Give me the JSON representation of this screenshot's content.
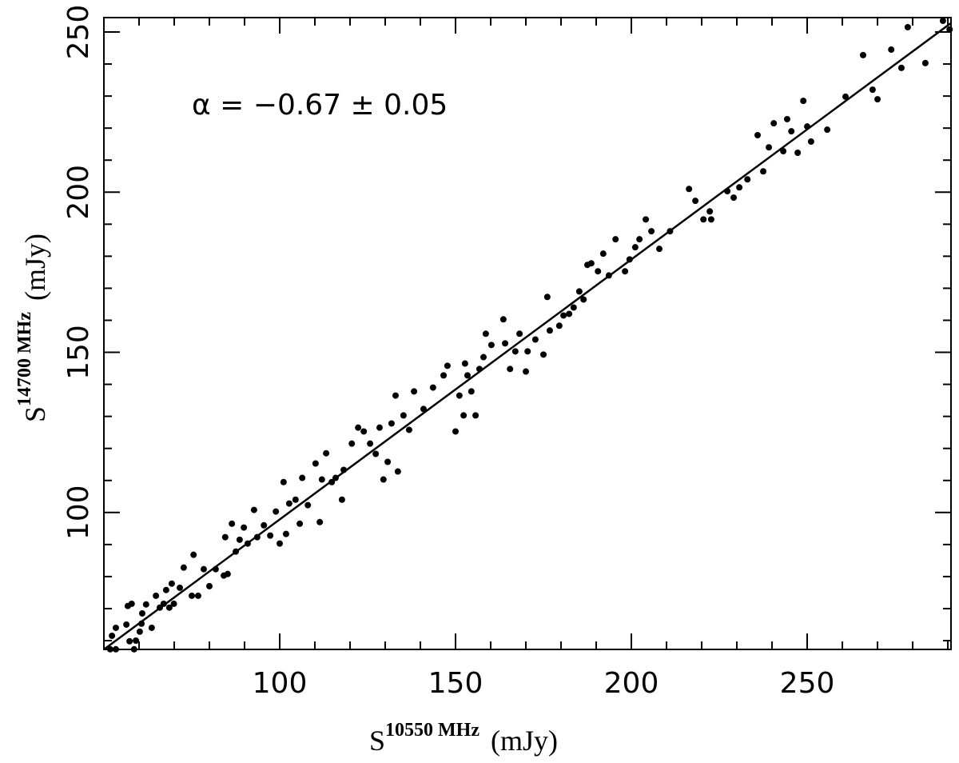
{
  "chart_data": {
    "type": "scatter",
    "annotation": "α = −0.67 ± 0.05",
    "x_label": {
      "base": "S",
      "sup": "10550 MHz",
      "unit": "(mJy)"
    },
    "y_label": {
      "base": "S",
      "sup": "14700 MHz",
      "unit": "(mJy)"
    },
    "xlim": [
      50,
      290.9
    ],
    "ylim": [
      57.25,
      254.5
    ],
    "xticks": [
      100,
      150,
      200,
      250
    ],
    "yticks": [
      100,
      150,
      200,
      250
    ],
    "x_minor_ticks": [
      60,
      70,
      80,
      90,
      110,
      120,
      130,
      140,
      160,
      170,
      180,
      190,
      210,
      220,
      230,
      240,
      260,
      270,
      280,
      290
    ],
    "y_minor_ticks": [
      60,
      70,
      80,
      90,
      110,
      120,
      130,
      140,
      160,
      170,
      180,
      190,
      210,
      220,
      230,
      240
    ],
    "color": "#000000",
    "fit": {
      "x": [
        50,
        290.9
      ],
      "y": [
        57.25,
        252.8
      ]
    },
    "x": [
      51.8,
      53.4,
      52.3,
      53.4,
      56.4,
      56.8,
      57.9,
      57.3,
      58.6,
      59.1,
      60.2,
      60.7,
      60.9,
      62,
      63.6,
      64.8,
      65.9,
      67,
      67.7,
      68.6,
      69.3,
      69.9,
      71.6,
      72.7,
      75,
      75.5,
      76.8,
      78.4,
      80,
      81.8,
      84.1,
      84.5,
      85.2,
      86.4,
      87.5,
      88.6,
      89.8,
      90.9,
      92.7,
      93.6,
      95.5,
      97.3,
      98.9,
      100,
      101.1,
      101.8,
      102.7,
      104.5,
      105.7,
      106.4,
      108,
      110.2,
      111.4,
      112,
      113.2,
      114.8,
      115.9,
      117.7,
      118.2,
      120.5,
      122.3,
      123.9,
      125.7,
      127.3,
      128.4,
      129.5,
      130.7,
      131.8,
      132.95,
      133.6,
      135.2,
      136.8,
      138.2,
      140.9,
      143.6,
      146.6,
      147.7,
      150,
      151.1,
      152.3,
      152.7,
      153.4,
      154.5,
      155.7,
      156.8,
      157.95,
      158.6,
      160.2,
      163.6,
      164.1,
      165.5,
      167,
      168.2,
      170,
      170.5,
      172.7,
      175,
      176.1,
      176.8,
      179.5,
      180.7,
      182.3,
      183.6,
      185.2,
      186.4,
      187.5,
      188.6,
      190.5,
      192,
      193.6,
      195.5,
      198.2,
      199.5,
      201.1,
      202.3,
      204.1,
      205.7,
      207.95,
      211,
      216.4,
      218.2,
      220.5,
      222.3,
      222.7,
      227.3,
      229.1,
      230.7,
      233,
      235.9,
      237.5,
      239.1,
      240.5,
      243.2,
      244.3,
      245.5,
      247.3,
      248.9,
      250,
      251.1,
      255.7,
      260.9,
      265.9,
      268.6,
      270,
      273.9,
      276.8,
      278.6,
      283.6,
      288.6,
      290.5
    ],
    "values": [
      57.3,
      57.3,
      61.5,
      64,
      65,
      70.8,
      71.5,
      59.8,
      57.3,
      60,
      62.8,
      65.3,
      68.5,
      71.3,
      64,
      74,
      70.3,
      71.5,
      75.8,
      70.3,
      77.8,
      71.5,
      76.5,
      82.8,
      74,
      86.8,
      74,
      82.3,
      77,
      82.3,
      80.3,
      92.3,
      80.8,
      96.5,
      87.8,
      91.5,
      95.3,
      90.3,
      100.8,
      92.3,
      96,
      92.8,
      100.3,
      90.3,
      109.5,
      93.3,
      102.8,
      104,
      96.5,
      110.8,
      102.3,
      115.3,
      97,
      110.3,
      118.5,
      109.5,
      110.8,
      104,
      113.3,
      121.5,
      126.5,
      125.3,
      121.5,
      118.3,
      126.5,
      110.3,
      115.8,
      127.8,
      136.5,
      112.8,
      130.3,
      125.8,
      137.8,
      132.3,
      139,
      142.8,
      145.8,
      125.3,
      136.5,
      130.3,
      146.5,
      142.8,
      137.8,
      130.3,
      144.8,
      148.5,
      155.8,
      152.3,
      160.3,
      152.8,
      144.8,
      150.3,
      155.8,
      144,
      150.3,
      154,
      149.3,
      167.3,
      156.8,
      158.3,
      161.5,
      162,
      164,
      169,
      166.5,
      177.3,
      177.8,
      175.3,
      180.8,
      174,
      185.3,
      175.3,
      179,
      182.8,
      185.3,
      191.5,
      187.8,
      182.3,
      187.8,
      201,
      197.3,
      191.5,
      194,
      191.5,
      200.3,
      198.3,
      201.5,
      204,
      217.8,
      206.5,
      214,
      221.5,
      212.8,
      222.8,
      219,
      212.3,
      228.5,
      220.5,
      215.8,
      219.5,
      229.8,
      242.8,
      232,
      229,
      244.5,
      238.8,
      251.5,
      240.3,
      253.5,
      250.8
    ]
  }
}
